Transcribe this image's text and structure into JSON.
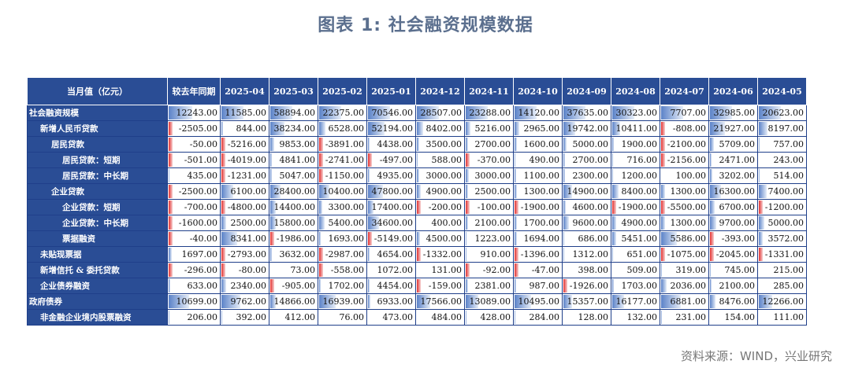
{
  "title": "图表 1: 社会融资规模数据",
  "source": "资料来源：WIND，兴业研究",
  "colors": {
    "header_bg": "#2a4d95",
    "bar_positive": "#5b82c8",
    "bar_negative": "#e23030"
  },
  "chart_data": {
    "type": "table",
    "corner_header": "当月值（亿元）",
    "columns": [
      "较去年同期",
      "2025-04",
      "2025-03",
      "2025-02",
      "2025-01",
      "2024-12",
      "2024-11",
      "2024-10",
      "2024-09",
      "2024-08",
      "2024-07",
      "2024-06",
      "2024-05"
    ],
    "rows": [
      {
        "label": "社会融资规模",
        "level": 0,
        "values": [
          12243.0,
          11585.0,
          58894.0,
          22375.0,
          70546.0,
          28507.0,
          23288.0,
          14120.0,
          37635.0,
          30323.0,
          7707.0,
          32985.0,
          20623.0
        ]
      },
      {
        "label": "新增人民币贷款",
        "level": 1,
        "values": [
          -2505.0,
          844.0,
          38234.0,
          6528.0,
          52194.0,
          8402.0,
          5216.0,
          2965.0,
          19742.0,
          10411.0,
          -808.0,
          21927.0,
          8197.0
        ]
      },
      {
        "label": "居民贷款",
        "level": 2,
        "values": [
          -50.0,
          -5216.0,
          9853.0,
          -3891.0,
          4438.0,
          3500.0,
          2700.0,
          1600.0,
          5000.0,
          1900.0,
          -2100.0,
          5709.0,
          757.0
        ]
      },
      {
        "label": "居民贷款：短期",
        "level": 3,
        "values": [
          -501.0,
          -4019.0,
          4841.0,
          -2741.0,
          -497.0,
          588.0,
          -370.0,
          490.0,
          2700.0,
          716.0,
          -2156.0,
          2471.0,
          243.0
        ]
      },
      {
        "label": "居民贷款：中长期",
        "level": 3,
        "values": [
          435.0,
          -1231.0,
          5047.0,
          -1150.0,
          4935.0,
          3000.0,
          3000.0,
          1100.0,
          2300.0,
          1200.0,
          100.0,
          3202.0,
          514.0
        ]
      },
      {
        "label": "企业贷款",
        "level": 2,
        "values": [
          -2500.0,
          6100.0,
          28400.0,
          10400.0,
          47800.0,
          4900.0,
          2500.0,
          1300.0,
          14900.0,
          8400.0,
          1300.0,
          16300.0,
          7400.0
        ]
      },
      {
        "label": "企业贷款：短期",
        "level": 3,
        "values": [
          -700.0,
          -4800.0,
          14400.0,
          3300.0,
          17400.0,
          -200.0,
          -100.0,
          -1900.0,
          4600.0,
          -1900.0,
          -5500.0,
          6700.0,
          -1200.0
        ]
      },
      {
        "label": "企业贷款：中长期",
        "level": 3,
        "values": [
          -1600.0,
          2500.0,
          15800.0,
          5400.0,
          34600.0,
          400.0,
          2100.0,
          1700.0,
          9600.0,
          4900.0,
          1300.0,
          9700.0,
          5000.0
        ]
      },
      {
        "label": "票据融资",
        "level": 3,
        "values": [
          -40.0,
          8341.0,
          -1986.0,
          1693.0,
          -5149.0,
          4500.0,
          1223.0,
          1694.0,
          686.0,
          5451.0,
          5586.0,
          -393.0,
          3572.0
        ]
      },
      {
        "label": "未贴现票据",
        "level": 1,
        "values": [
          1697.0,
          -2793.0,
          3632.0,
          -2987.0,
          4654.0,
          -1332.0,
          910.0,
          -1396.0,
          1312.0,
          651.0,
          -1075.0,
          -2045.0,
          -1331.0
        ]
      },
      {
        "label": "新增信托 & 委托贷款",
        "level": 1,
        "values": [
          -296.0,
          -80.0,
          73.0,
          -558.0,
          1072.0,
          131.0,
          -92.0,
          -47.0,
          398.0,
          509.0,
          319.0,
          745.0,
          215.0
        ]
      },
      {
        "label": "企业债券融资",
        "level": 1,
        "values": [
          633.0,
          2340.0,
          -905.0,
          1702.0,
          4454.0,
          -159.0,
          2381.0,
          987.0,
          -1926.0,
          1703.0,
          2036.0,
          2100.0,
          285.0
        ]
      },
      {
        "label": "政府债券",
        "level": 0,
        "values": [
          10699.0,
          9762.0,
          14866.0,
          16939.0,
          6933.0,
          17566.0,
          13089.0,
          10495.0,
          15357.0,
          16177.0,
          6881.0,
          8476.0,
          12266.0
        ]
      },
      {
        "label": "非金融企业境内股票融资",
        "level": 1,
        "values": [
          206.0,
          392.0,
          412.0,
          76.0,
          473.0,
          484.0,
          428.0,
          284.0,
          128.0,
          132.0,
          231.0,
          154.0,
          111.0
        ]
      }
    ]
  }
}
